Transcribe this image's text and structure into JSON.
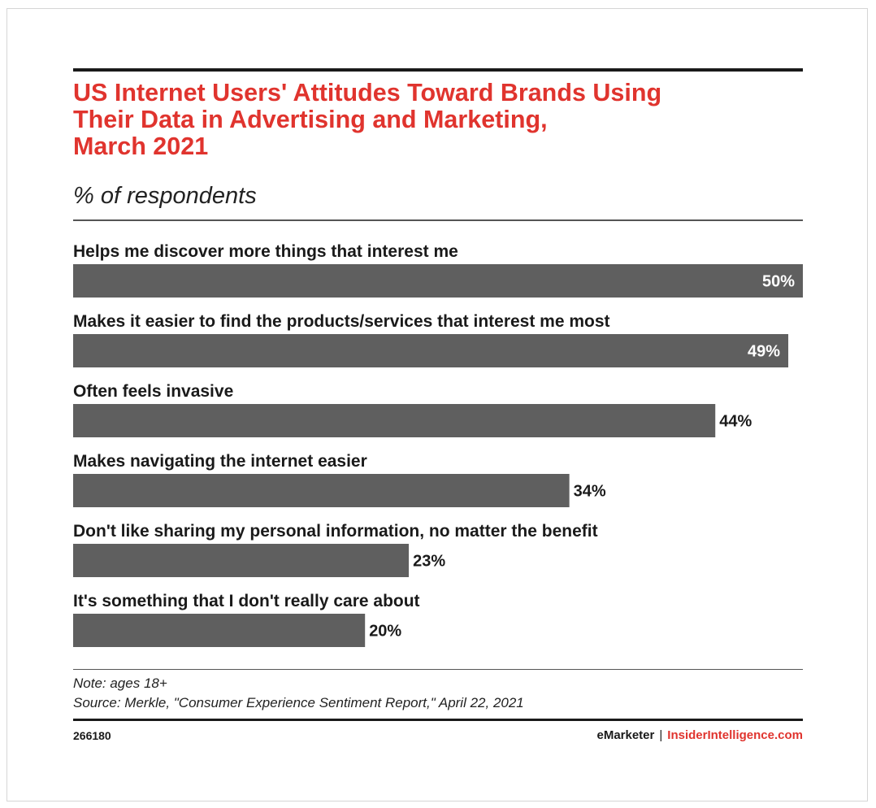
{
  "chart_data": {
    "type": "bar",
    "orientation": "horizontal",
    "title": "US Internet Users' Attitudes Toward Brands Using Their Data in Advertising and Marketing, March 2021",
    "title_lines": [
      "US Internet Users' Attitudes Toward Brands Using",
      "Their Data in Advertising and Marketing,",
      "March 2021"
    ],
    "subtitle": "% of respondents",
    "categories": [
      "Helps me discover more things that interest me",
      "Makes it easier to find the products/services that interest me most",
      "Often feels invasive",
      "Makes navigating the internet easier",
      "Don't like sharing my personal information, no matter the benefit",
      "It's something that I don't really care about"
    ],
    "values": [
      50,
      49,
      44,
      34,
      23,
      20
    ],
    "value_labels": [
      "50%",
      "49%",
      "44%",
      "34%",
      "23%",
      "20%"
    ],
    "xlim": [
      0,
      50
    ],
    "bar_color": "#5f5f5f",
    "xlabel": "",
    "ylabel": ""
  },
  "note": "Note: ages 18+",
  "source": "Source: Merkle, \"Consumer Experience Sentiment Report,\" April 22, 2021",
  "chart_id": "266180",
  "brand": {
    "primary": "eMarketer",
    "separator": "|",
    "secondary": "InsiderIntelligence.com"
  },
  "colors": {
    "accent": "#e0342e",
    "text": "#1a1a1a",
    "bar": "#5f5f5f"
  }
}
